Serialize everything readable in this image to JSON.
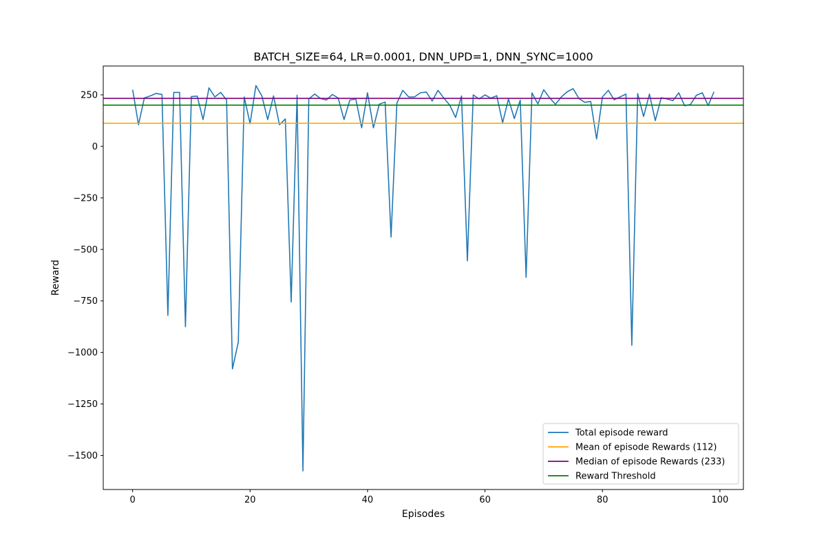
{
  "chart_data": {
    "type": "line",
    "title": "BATCH_SIZE=64, LR=0.0001, DNN_UPD=1, DNN_SYNC=1000",
    "xlabel": "Episodes",
    "ylabel": "Reward",
    "xlim": [
      -5,
      104
    ],
    "ylim": [
      -1665,
      390
    ],
    "xticks": [
      0,
      20,
      40,
      60,
      80,
      100
    ],
    "yticks": [
      -1500,
      -1250,
      -1000,
      -750,
      -500,
      -250,
      0,
      250
    ],
    "ytick_labels": [
      "−1500",
      "−1250",
      "−1000",
      "−750",
      "−500",
      "−250",
      "0",
      "250"
    ],
    "grid": false,
    "legend_position": "lower-right",
    "series": [
      {
        "name": "Total episode reward",
        "color": "#1f77b4",
        "x": [
          0,
          1,
          2,
          3,
          4,
          5,
          6,
          7,
          8,
          9,
          10,
          11,
          12,
          13,
          14,
          15,
          16,
          17,
          18,
          19,
          20,
          21,
          22,
          23,
          24,
          25,
          26,
          27,
          28,
          29,
          30,
          31,
          32,
          33,
          34,
          35,
          36,
          37,
          38,
          39,
          40,
          41,
          42,
          43,
          44,
          45,
          46,
          47,
          48,
          49,
          50,
          51,
          52,
          53,
          54,
          55,
          56,
          57,
          58,
          59,
          60,
          61,
          62,
          63,
          64,
          65,
          66,
          67,
          68,
          69,
          70,
          71,
          72,
          73,
          74,
          75,
          76,
          77,
          78,
          79,
          80,
          81,
          82,
          83,
          84,
          85,
          86,
          87,
          88,
          89,
          90,
          91,
          92,
          93,
          94,
          95,
          96,
          97,
          98,
          99
        ],
        "y": [
          275,
          105,
          235,
          245,
          257,
          252,
          -820,
          262,
          262,
          -875,
          242,
          244,
          130,
          284,
          240,
          262,
          225,
          -1080,
          -950,
          240,
          110,
          295,
          245,
          130,
          245,
          105,
          133,
          -755,
          248,
          -1575,
          230,
          254,
          232,
          225,
          252,
          235,
          130,
          225,
          230,
          90,
          260,
          90,
          205,
          215,
          -440,
          210,
          272,
          240,
          240,
          260,
          264,
          220,
          272,
          234,
          200,
          140,
          245,
          -555,
          250,
          230,
          250,
          234,
          246,
          115,
          230,
          135,
          225,
          -635,
          260,
          206,
          275,
          236,
          204,
          240,
          265,
          280,
          232,
          214,
          218,
          36,
          240,
          272,
          226,
          240,
          254,
          -965,
          256,
          145,
          254,
          125,
          236,
          230,
          222,
          260,
          197,
          204,
          248,
          260,
          198,
          265
        ]
      },
      {
        "name": "Mean of episode Rewards (112)",
        "color": "#ffa500",
        "y": 112
      },
      {
        "name": "Median of episode Rewards (233)",
        "color": "#800080",
        "y": 233
      },
      {
        "name": "Reward Threshold",
        "color": "#008000",
        "y": 200
      }
    ]
  }
}
